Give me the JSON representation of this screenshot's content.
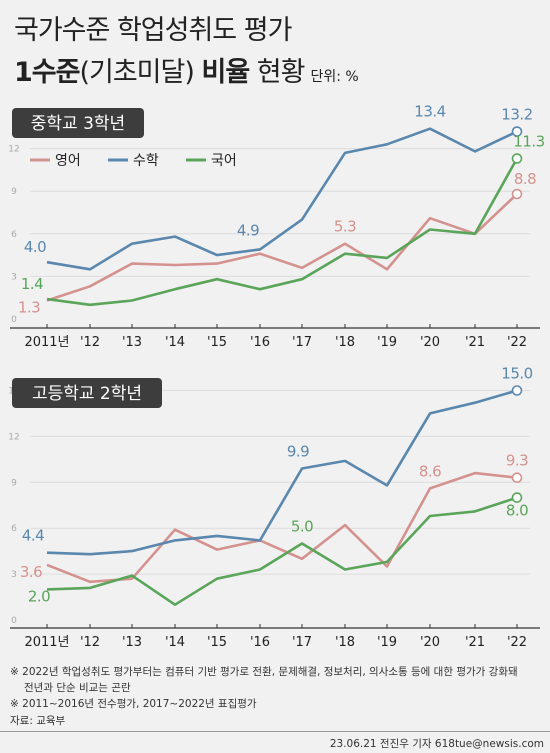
{
  "header": {
    "title_line1": "국가수준 학업성취도 평가",
    "title_line2_bold": "1수준",
    "title_line2_paren": "(기초미달)",
    "title_line2_bold2": "비율",
    "title_line2_rest": "현황",
    "unit": "단위: %"
  },
  "colors": {
    "english": "#d4928f",
    "math": "#5a87ad",
    "korean": "#5aa55a",
    "badge": "#3d3d3d"
  },
  "legend": [
    "영어",
    "수학",
    "국어"
  ],
  "x_labels": [
    "2011년",
    "'12",
    "'13",
    "'14",
    "'15",
    "'16",
    "'17",
    "'18",
    "'19",
    "'20",
    "'21",
    "'22"
  ],
  "chart_data": [
    {
      "type": "line",
      "badge": "중학교 3학년",
      "x": [
        "2011",
        "2012",
        "2013",
        "2014",
        "2015",
        "2016",
        "2017",
        "2018",
        "2019",
        "2020",
        "2021",
        "2022"
      ],
      "ylim": [
        0,
        14
      ],
      "y_ticks": [
        "0",
        "3",
        "6",
        "9",
        "12"
      ],
      "legend_position": "top-left",
      "series": [
        {
          "name": "영어",
          "color": "#d4928f",
          "values": [
            1.3,
            2.3,
            3.9,
            3.8,
            3.9,
            4.6,
            3.6,
            5.3,
            3.5,
            7.1,
            6.0,
            8.8
          ],
          "labels": {
            "0": "1.3",
            "7": "5.3",
            "11": "8.8"
          }
        },
        {
          "name": "수학",
          "color": "#5a87ad",
          "values": [
            4.0,
            3.5,
            5.3,
            5.8,
            4.5,
            4.9,
            7.0,
            11.7,
            12.3,
            13.4,
            11.8,
            13.2
          ],
          "labels": {
            "0": "4.0",
            "5": "4.9",
            "9": "13.4",
            "11": "13.2"
          }
        },
        {
          "name": "국어",
          "color": "#5aa55a",
          "values": [
            1.4,
            1.0,
            1.3,
            2.1,
            2.8,
            2.1,
            2.8,
            4.6,
            4.3,
            6.3,
            6.0,
            11.3
          ],
          "labels": {
            "0": "1.4",
            "11": "11.3"
          }
        }
      ]
    },
    {
      "type": "line",
      "badge": "고등학교 2학년",
      "x": [
        "2011",
        "2012",
        "2013",
        "2014",
        "2015",
        "2016",
        "2017",
        "2018",
        "2019",
        "2020",
        "2021",
        "2022"
      ],
      "ylim": [
        0,
        16
      ],
      "y_ticks": [
        "0",
        "3",
        "6",
        "9",
        "12",
        "15"
      ],
      "series": [
        {
          "name": "영어",
          "color": "#d4928f",
          "values": [
            3.6,
            2.5,
            2.7,
            5.9,
            4.6,
            5.2,
            4.0,
            6.2,
            3.5,
            8.6,
            9.6,
            9.3
          ],
          "labels": {
            "0": "3.6",
            "9": "8.6",
            "11": "9.3"
          }
        },
        {
          "name": "수학",
          "color": "#5a87ad",
          "values": [
            4.4,
            4.3,
            4.5,
            5.2,
            5.5,
            5.2,
            9.9,
            10.4,
            8.8,
            13.5,
            14.2,
            15.0
          ],
          "labels": {
            "0": "4.4",
            "6": "9.9",
            "11": "15.0"
          }
        },
        {
          "name": "국어",
          "color": "#5aa55a",
          "values": [
            2.0,
            2.1,
            2.9,
            1.0,
            2.7,
            3.3,
            5.0,
            3.3,
            3.8,
            6.8,
            7.1,
            8.0
          ],
          "labels": {
            "0": "2.0",
            "6": "5.0",
            "11": "8.0"
          }
        }
      ]
    }
  ],
  "footer": {
    "note1": "※ 2022년 학업성취도 평가부터는 컴퓨터 기반 평가로 전환, 문제해결, 정보처리, 의사소통 등에 대한 평가가 강화돼",
    "note1b": "전년과 단순 비교는 곤란",
    "note2": "※ 2011~2016년 전수평가, 2017~2022년 표집평가",
    "source": "자료: 교육부",
    "credit": "23.06.21 전진우 기자 618tue@newsis.com"
  }
}
